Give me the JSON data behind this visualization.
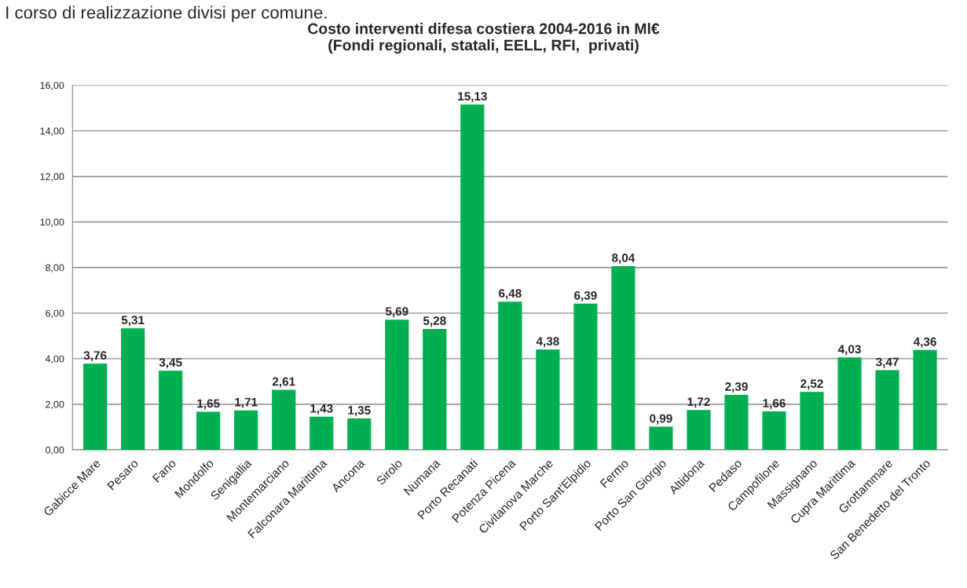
{
  "chart_data": {
    "type": "bar",
    "title": "Costo interventi difesa costiera 2004-2016 in Ml€\n(Fondi regionali, statali, EELL, RFI,  privati)",
    "annotations": [
      "I corso di realizzazione divisi per comune."
    ],
    "categories": [
      "Gabicce Mare",
      "Pesaro",
      "Fano",
      "Mondolfo",
      "Senigallia",
      "Montemarciano",
      "Falconara Marittima",
      "Ancona",
      "Sirolo",
      "Numana",
      "Porto Recanati",
      "Potenza Picena",
      "Civitanova Marche",
      "Porto Sant'Elpidio",
      "Fermo",
      "Porto San Giorgio",
      "Altidona",
      "Pedaso",
      "Campofilone",
      "Massignano",
      "Cupra Marittima",
      "Grottammare",
      "San Benedetto del Tronto"
    ],
    "values": [
      3.76,
      5.31,
      3.45,
      1.65,
      1.71,
      2.61,
      1.43,
      1.35,
      5.69,
      5.28,
      15.13,
      6.48,
      4.38,
      6.39,
      8.04,
      0.99,
      1.72,
      2.39,
      1.66,
      2.52,
      4.03,
      3.47,
      4.36
    ],
    "value_labels": [
      "3,76",
      "5,31",
      "3,45",
      "1,65",
      "1,71",
      "2,61",
      "1,43",
      "1,35",
      "5,69",
      "5,28",
      "15,13",
      "6,48",
      "4,38",
      "6,39",
      "8,04",
      "0,99",
      "1,72",
      "2,39",
      "1,66",
      "2,52",
      "4,03",
      "3,47",
      "4,36"
    ],
    "color": "#00b050",
    "ylim": [
      0,
      16
    ],
    "yticks": [
      {
        "value": 0,
        "label": "0,00"
      },
      {
        "value": 2,
        "label": "2,00"
      },
      {
        "value": 4,
        "label": "4,00"
      },
      {
        "value": 6,
        "label": "6,00"
      },
      {
        "value": 8,
        "label": "8,00"
      },
      {
        "value": 10,
        "label": "10,00"
      },
      {
        "value": 12,
        "label": "12,00"
      },
      {
        "value": 14,
        "label": "14,00"
      },
      {
        "value": 16,
        "label": "16,00"
      }
    ],
    "grid": "y",
    "legend": false
  }
}
